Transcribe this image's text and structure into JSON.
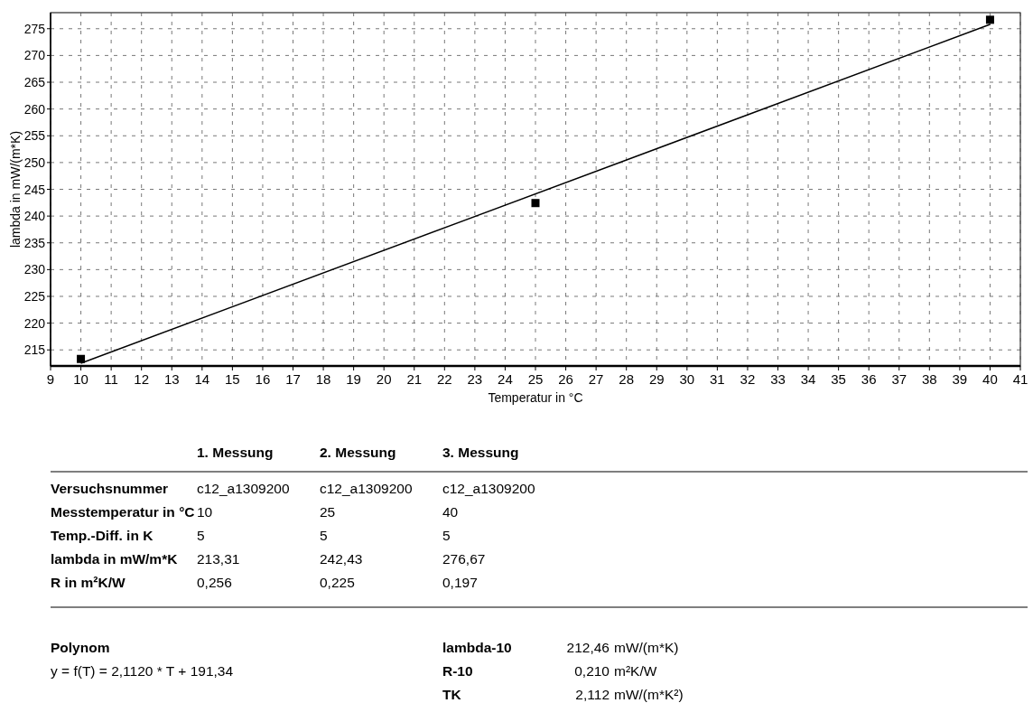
{
  "chart_data": {
    "type": "scatter",
    "xlabel": "Temperatur in °C",
    "ylabel": "lambda in mW/(m*K)",
    "xlim": [
      9,
      41
    ],
    "xticks": [
      9,
      10,
      11,
      12,
      13,
      14,
      15,
      16,
      17,
      18,
      19,
      20,
      21,
      22,
      23,
      24,
      25,
      26,
      27,
      28,
      29,
      30,
      31,
      32,
      33,
      34,
      35,
      36,
      37,
      38,
      39,
      40,
      41
    ],
    "ylim": [
      212,
      278
    ],
    "yticks": [
      215,
      220,
      225,
      230,
      235,
      240,
      245,
      250,
      255,
      260,
      265,
      270,
      275
    ],
    "grid": true,
    "series": [
      {
        "color": "#000000",
        "marker": "square",
        "x": [
          10,
          25,
          40
        ],
        "values": [
          213.31,
          242.43,
          276.67
        ]
      },
      {
        "type": "line",
        "color": "#000000",
        "marker": "none",
        "line_style": "solid",
        "x": [
          10,
          40
        ],
        "values": [
          212.5,
          275.8
        ]
      }
    ],
    "annotations": [
      "1. Messung",
      "2. Messung",
      "3. Messung",
      "Versuchsnummer",
      "c12_a1309200",
      "c12_a1309200",
      "c12_a1309200",
      "Messtemperatur in °C",
      "10",
      "25",
      "40",
      "Temp.-Diff. in K",
      "5",
      "5",
      "5",
      "lambda in mW/m*K",
      "213,31",
      "242,43",
      "276,67",
      "R in m²K/W",
      "0,256",
      "0,225",
      "0,197",
      "Polynom",
      "y = f(T) = 2,1120 * T + 191,34",
      "lambda-10",
      "212,46",
      "mW/(m*K)",
      "R-10",
      "0,210",
      "m²K/W",
      "TK",
      "2,112",
      "mW/(m*K²)"
    ]
  }
}
